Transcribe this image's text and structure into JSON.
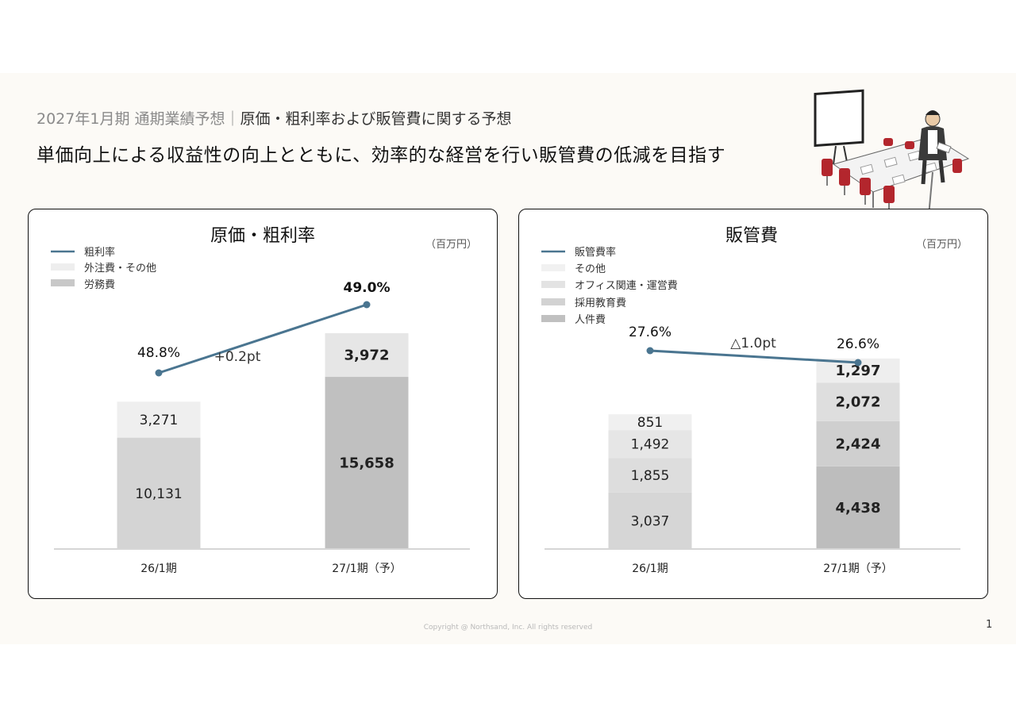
{
  "header": {
    "subtitle_grey": "2027年1月期 通期業績予想｜",
    "subtitle_main": "原価・粗利率および販管費に関する予想",
    "headline": "単価向上による収益性の向上とともに、効率的な経営を行い販管費の低減を目指す"
  },
  "footer": {
    "copyright": "Copyright @ Northsand, Inc. All rights reserved",
    "page": "1"
  },
  "colors": {
    "line": "#4a7590",
    "left_top": "#eeeeee",
    "left_bottom": "#d0d0d0",
    "right_s1": "#c0c0c0",
    "right_s2": "#d2d2d2",
    "right_s3": "#e0e0e0",
    "right_s4": "#eeeeee",
    "axis": "#d6d6d6"
  },
  "chart_data": [
    {
      "type": "bar",
      "stacked": true,
      "title": "原価・粗利率",
      "unit": "（百万円）",
      "categories": [
        "26/1期",
        "27/1期（予）"
      ],
      "series": [
        {
          "name": "労務費",
          "values": [
            10131,
            15658
          ],
          "labels": [
            "10,131",
            "15,658"
          ]
        },
        {
          "name": "外注費・その他",
          "values": [
            3271,
            3972
          ],
          "labels": [
            "3,271",
            "3,972"
          ]
        }
      ],
      "line": {
        "name": "粗利率",
        "values": [
          48.8,
          49.0
        ],
        "labels": [
          "48.8%",
          "49.0%"
        ]
      },
      "annotation": "+0.2pt",
      "legend": [
        "粗利率",
        "外注費・その他",
        "労務費"
      ],
      "legend_position": "top-left",
      "ylim": [
        0,
        20000
      ]
    },
    {
      "type": "bar",
      "stacked": true,
      "title": "販管費",
      "unit": "（百万円）",
      "categories": [
        "26/1期",
        "27/1期（予）"
      ],
      "series": [
        {
          "name": "人件費",
          "values": [
            3037,
            4438
          ],
          "labels": [
            "3,037",
            "4,438"
          ]
        },
        {
          "name": "採用教育費",
          "values": [
            1855,
            2424
          ],
          "labels": [
            "1,855",
            "2,424"
          ]
        },
        {
          "name": "オフィス関連・運営費",
          "values": [
            1492,
            2072
          ],
          "labels": [
            "1,492",
            "2,072"
          ]
        },
        {
          "name": "その他",
          "values": [
            851,
            1297
          ],
          "labels": [
            "851",
            "1,297"
          ]
        }
      ],
      "line": {
        "name": "販管費率",
        "values": [
          27.6,
          26.6
        ],
        "labels": [
          "27.6%",
          "26.6%"
        ]
      },
      "annotation": "△1.0pt",
      "legend": [
        "販管費率",
        "その他",
        "オフィス関連・運営費",
        "採用教育費",
        "人件費"
      ],
      "legend_position": "top-left",
      "ylim": [
        0,
        12500
      ]
    }
  ]
}
